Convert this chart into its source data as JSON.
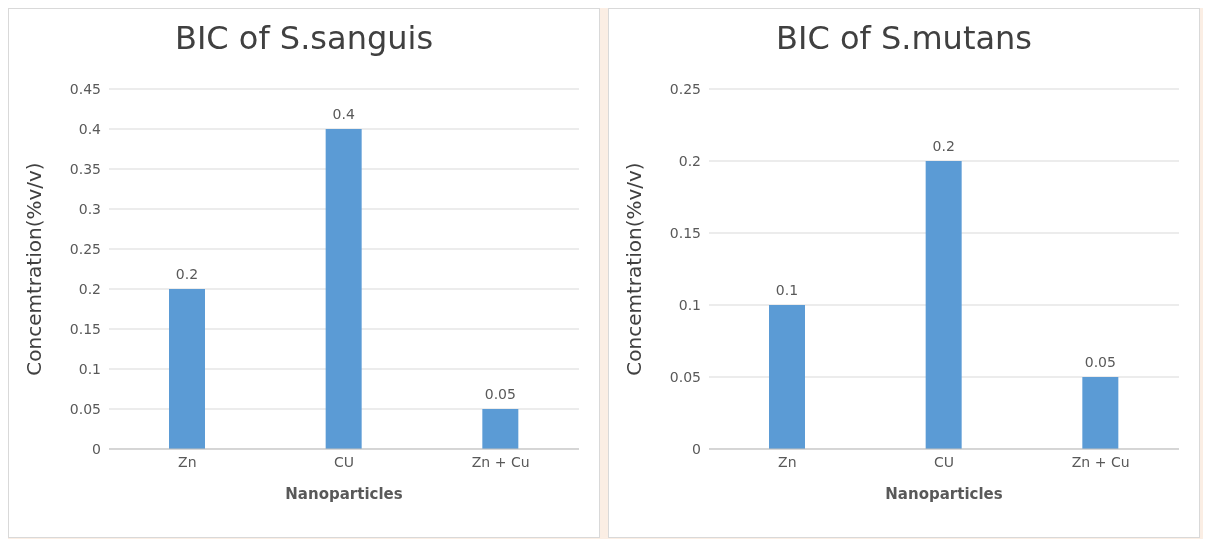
{
  "chart_data": [
    {
      "type": "bar",
      "title": "BIC of S.sanguis",
      "xlabel": "Nanoparticles",
      "ylabel": "Concemtration(%v/v)",
      "categories": [
        "Zn",
        "CU",
        "Zn + Cu"
      ],
      "values": [
        0.2,
        0.4,
        0.05
      ],
      "color": "#5b9bd5",
      "ylim": [
        0,
        0.45
      ],
      "yticks": [
        0,
        0.05,
        0.1,
        0.15,
        0.2,
        0.25,
        0.3,
        0.35,
        0.4,
        0.45
      ],
      "grid": "y",
      "data_labels": true
    },
    {
      "type": "bar",
      "title": "BIC of S.mutans",
      "xlabel": "Nanoparticles",
      "ylabel": "Concemtration(%v/v)",
      "categories": [
        "Zn",
        "CU",
        "Zn + Cu"
      ],
      "values": [
        0.1,
        0.2,
        0.05
      ],
      "color": "#5b9bd5",
      "ylim": [
        0,
        0.25
      ],
      "yticks": [
        0,
        0.05,
        0.1,
        0.15,
        0.2,
        0.25
      ],
      "grid": "y",
      "data_labels": true
    }
  ]
}
